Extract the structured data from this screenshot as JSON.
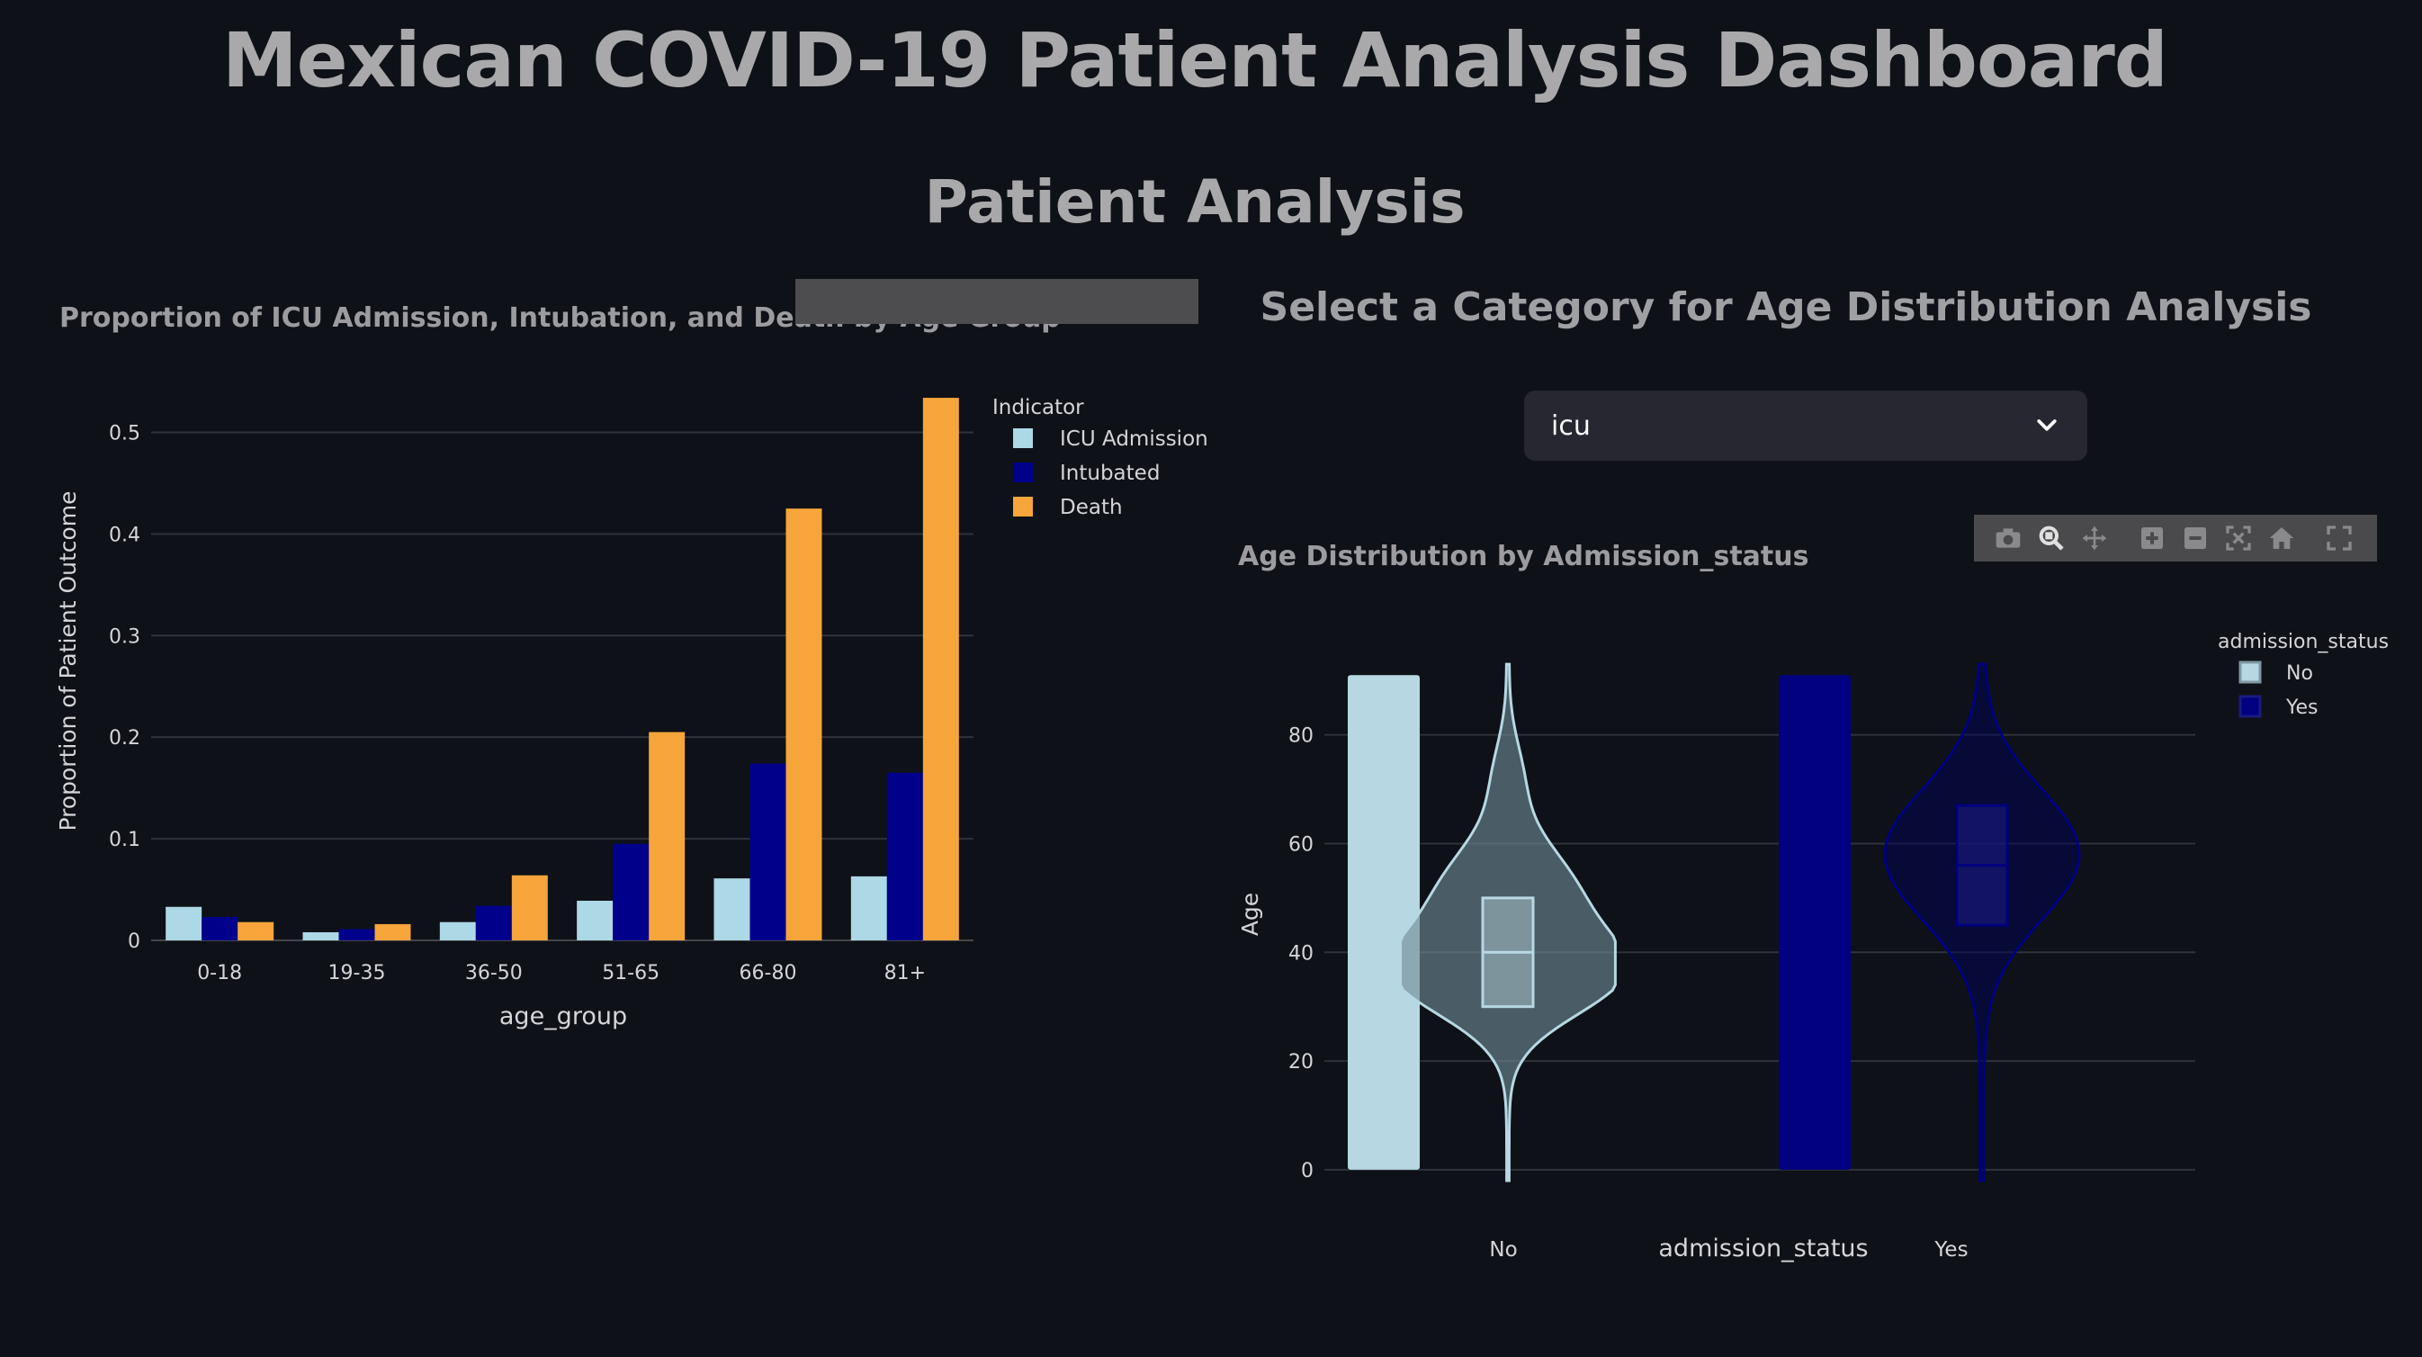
{
  "header": {
    "title": "Mexican COVID-19 Patient Analysis Dashboard",
    "section_title": "Patient Analysis"
  },
  "bar_chart": {
    "title": "Proportion of ICU Admission, Intubation, and Death by Age Group",
    "legend_title": "Indicator",
    "yaxis_label": "Proportion of Patient Outcome",
    "xaxis_label": "age_group",
    "y_ticks": [
      "0",
      "0.1",
      "0.2",
      "0.3",
      "0.4",
      "0.5"
    ]
  },
  "selector": {
    "heading": "Select a Category for Age Distribution Analysis",
    "selected_value": "icu"
  },
  "violin_chart": {
    "title": "Age Distribution by Admission_status",
    "legend_title": "admission_status",
    "yaxis_label": "Age",
    "xaxis_label": "admission_status",
    "y_ticks": [
      "0",
      "20",
      "40",
      "60",
      "80"
    ]
  },
  "modebar": {
    "icons": [
      "camera-icon",
      "zoom-icon",
      "pan-icon",
      "zoom-in-icon",
      "zoom-out-icon",
      "autoscale-icon",
      "home-icon",
      "fullscreen-icon"
    ]
  },
  "colors": {
    "background": "#0e1117",
    "icu": "#add8e6",
    "intubated": "#00008b",
    "death": "#f5a53a",
    "no": "#b7d7e3",
    "yes": "#000080"
  },
  "chart_data": [
    {
      "type": "bar",
      "title": "Proportion of ICU Admission, Intubation, and Death by Age Group",
      "xlabel": "age_group",
      "ylabel": "Proportion of Patient Outcome",
      "categories": [
        "0-18",
        "19-35",
        "36-50",
        "51-65",
        "66-80",
        "81+"
      ],
      "series": [
        {
          "name": "ICU Admission",
          "color": "#add8e6",
          "values": [
            0.033,
            0.008,
            0.018,
            0.039,
            0.061,
            0.063
          ]
        },
        {
          "name": "Intubated",
          "color": "#00008b",
          "values": [
            0.023,
            0.011,
            0.034,
            0.095,
            0.174,
            0.165
          ]
        },
        {
          "name": "Death",
          "color": "#f5a53a",
          "values": [
            0.018,
            0.016,
            0.064,
            0.205,
            0.425,
            0.534
          ]
        }
      ],
      "ylim": [
        0,
        0.55
      ],
      "grid": true,
      "legend": "top-right"
    },
    {
      "type": "violin",
      "title": "Age Distribution by Admission_status",
      "xlabel": "admission_status",
      "ylabel": "Age",
      "categories": [
        "No",
        "Yes"
      ],
      "series": [
        {
          "name": "No",
          "color": "#b7d7e3",
          "range": [
            0,
            91
          ],
          "box": {
            "q1": 30,
            "median": 40,
            "q3": 50
          }
        },
        {
          "name": "Yes",
          "color": "#000080",
          "range": [
            0,
            91
          ],
          "box": {
            "q1": 45,
            "median": 56,
            "q3": 67
          }
        }
      ],
      "ylim": [
        -2,
        96
      ],
      "grid": true,
      "legend": "top-right"
    }
  ]
}
